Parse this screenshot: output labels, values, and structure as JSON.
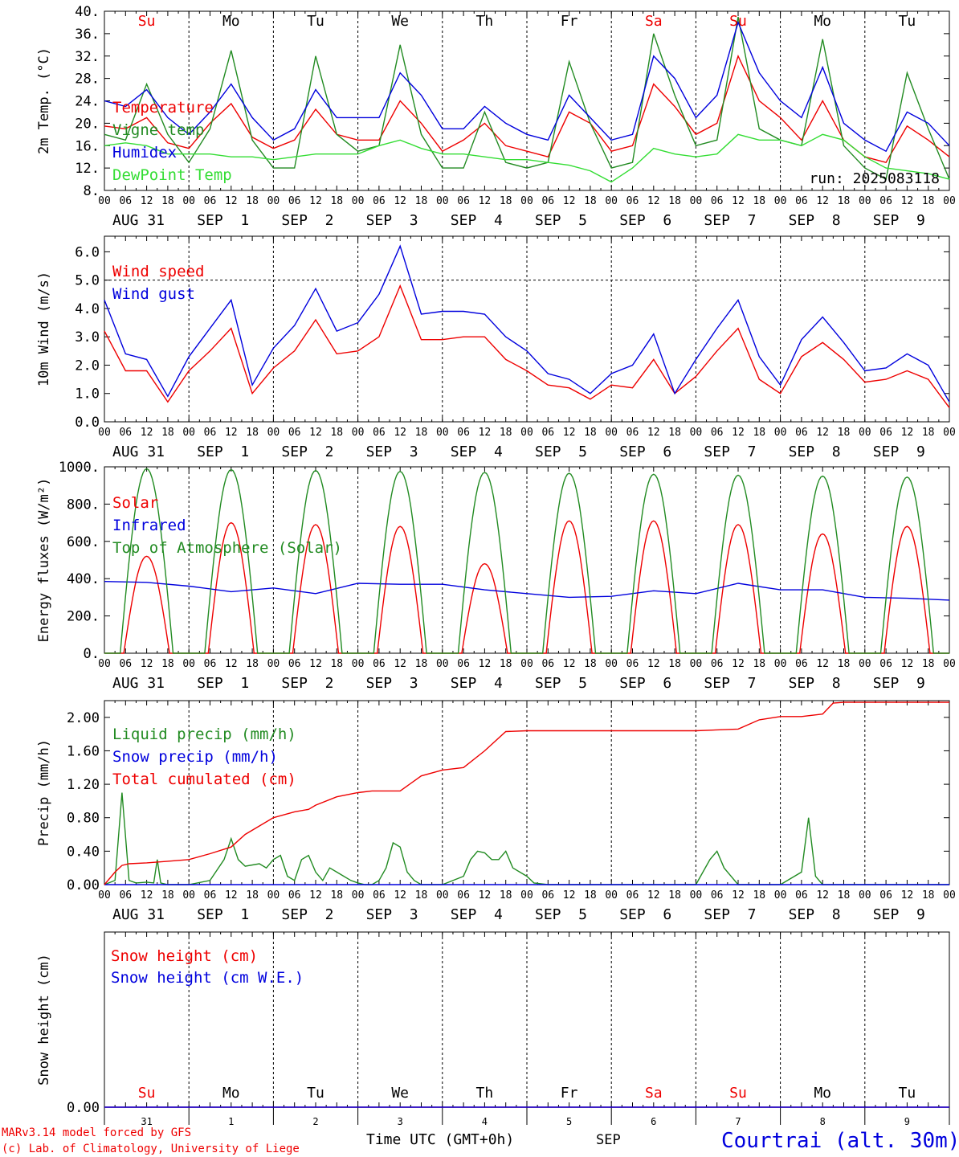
{
  "colors": {
    "red": "#ee0000",
    "blue": "#0000dd",
    "green": "#228b22",
    "lightgreen": "#33dd33",
    "black": "#000000"
  },
  "days": {
    "labels": [
      "AUG 31",
      "SEP  1",
      "SEP  2",
      "SEP  3",
      "SEP  4",
      "SEP  5",
      "SEP  6",
      "SEP  7",
      "SEP  8",
      "SEP  9"
    ],
    "weekdays": [
      "Su",
      "Mo",
      "Tu",
      "We",
      "Th",
      "Fr",
      "Sa",
      "Su",
      "Mo",
      "Tu"
    ],
    "weekday_colors": [
      "red",
      "black",
      "black",
      "black",
      "black",
      "black",
      "red",
      "red",
      "black",
      "black"
    ],
    "numbers": [
      "31",
      "1",
      "2",
      "3",
      "4",
      "5",
      "6",
      "7",
      "8",
      "9"
    ],
    "hour_ticks": [
      "00",
      "06",
      "12",
      "18"
    ],
    "final_tick": "00"
  },
  "footer": {
    "model": "MARv3.14 model forced by GFS",
    "lab": "(c) Lab. of Climatology, University of Liege",
    "time_label": "Time UTC (GMT+0h)",
    "month": "SEP",
    "station": "Courtrai (alt. 30m)"
  },
  "chart_data": [
    {
      "type": "line",
      "id": "temp",
      "ylabel": "2m Temp. (°C)",
      "ylim": [
        8,
        40
      ],
      "yticks": [
        "8.",
        "12.",
        "16.",
        "20.",
        "24.",
        "28.",
        "32.",
        "36.",
        "40."
      ],
      "run_label": "run: 2025083118",
      "series": [
        {
          "name": "Temperature",
          "color": "red",
          "x": [
            0,
            6,
            12,
            18,
            24,
            30,
            36,
            42,
            48,
            54,
            60,
            66,
            72,
            78,
            84,
            90,
            96,
            102,
            108,
            114,
            120,
            126,
            132,
            138,
            144,
            150,
            156,
            162,
            168,
            174,
            180,
            186,
            192,
            198,
            204,
            210,
            216,
            222,
            228,
            234,
            240
          ],
          "values": [
            19.5,
            19,
            21,
            16.5,
            15.5,
            20,
            23.5,
            17.5,
            15.5,
            17,
            22.5,
            18,
            17,
            17,
            24,
            20,
            15,
            17,
            20,
            16,
            15,
            14,
            22,
            20,
            15,
            16,
            27,
            23,
            18,
            20,
            32,
            24,
            21,
            17,
            24,
            17,
            14,
            13,
            19.5,
            17,
            14
          ]
        },
        {
          "name": "Vigne temp",
          "color": "green",
          "x": [
            0,
            6,
            12,
            18,
            24,
            30,
            36,
            42,
            48,
            54,
            60,
            66,
            72,
            78,
            84,
            90,
            96,
            102,
            108,
            114,
            120,
            126,
            132,
            138,
            144,
            150,
            156,
            162,
            168,
            174,
            180,
            186,
            192,
            198,
            204,
            210,
            216,
            222,
            228,
            234,
            240
          ],
          "values": [
            18,
            17,
            27,
            18,
            13,
            19,
            33,
            17,
            12,
            12,
            32,
            18,
            15,
            16,
            34,
            18,
            12,
            12,
            22,
            13,
            12,
            13,
            31,
            20,
            12,
            13,
            36,
            25,
            16,
            17,
            39,
            19,
            17,
            16,
            35,
            16,
            12,
            10,
            29,
            19,
            10
          ]
        },
        {
          "name": "Humidex",
          "color": "blue",
          "x": [
            0,
            6,
            12,
            18,
            24,
            30,
            36,
            42,
            48,
            54,
            60,
            66,
            72,
            78,
            84,
            90,
            96,
            102,
            108,
            114,
            120,
            126,
            132,
            138,
            144,
            150,
            156,
            162,
            168,
            174,
            180,
            186,
            192,
            198,
            204,
            210,
            216,
            222,
            228,
            234,
            240
          ],
          "values": [
            24,
            23,
            26,
            21,
            18,
            22,
            27,
            21,
            17,
            19,
            26,
            21,
            21,
            21,
            29,
            25,
            19,
            19,
            23,
            20,
            18,
            17,
            25,
            21,
            17,
            18,
            32,
            28,
            21,
            25,
            38,
            29,
            24,
            21,
            30,
            20,
            17,
            15,
            22,
            20,
            16
          ]
        },
        {
          "name": "DewPoint Temp",
          "color": "lightgreen",
          "x": [
            0,
            6,
            12,
            18,
            24,
            30,
            36,
            42,
            48,
            54,
            60,
            66,
            72,
            78,
            84,
            90,
            96,
            102,
            108,
            114,
            120,
            126,
            132,
            138,
            144,
            150,
            156,
            162,
            168,
            174,
            180,
            186,
            192,
            198,
            204,
            210,
            216,
            222,
            228,
            234,
            240
          ],
          "values": [
            16,
            16.5,
            16,
            14.5,
            14.5,
            14.5,
            14,
            14,
            13.5,
            14,
            14.5,
            14.5,
            14.5,
            16,
            17,
            15.5,
            14.5,
            14.5,
            14,
            13.5,
            13.5,
            13,
            12.5,
            11.5,
            9.5,
            12,
            15.5,
            14.5,
            14,
            14.5,
            18,
            17,
            17,
            16,
            18,
            17,
            14,
            12,
            11.5,
            11,
            10
          ]
        }
      ]
    },
    {
      "type": "line",
      "id": "wind",
      "ylabel": "10m Wind (m/s)",
      "ylim": [
        0,
        6.55
      ],
      "yticks": [
        "0.0",
        "1.0",
        "2.0",
        "3.0",
        "4.0",
        "5.0",
        "6.0"
      ],
      "ref_line": 5.0,
      "series": [
        {
          "name": "Wind speed",
          "color": "red",
          "x": [
            0,
            6,
            12,
            18,
            24,
            30,
            36,
            42,
            48,
            54,
            60,
            66,
            72,
            78,
            84,
            90,
            96,
            102,
            108,
            114,
            120,
            126,
            132,
            138,
            144,
            150,
            156,
            162,
            168,
            174,
            180,
            186,
            192,
            198,
            204,
            210,
            216,
            222,
            228,
            234,
            240
          ],
          "values": [
            3.2,
            1.8,
            1.8,
            0.7,
            1.8,
            2.5,
            3.3,
            1.0,
            1.9,
            2.5,
            3.6,
            2.4,
            2.5,
            3.0,
            4.8,
            2.9,
            2.9,
            3.0,
            3.0,
            2.2,
            1.8,
            1.3,
            1.2,
            0.8,
            1.3,
            1.2,
            2.2,
            1.0,
            1.6,
            2.5,
            3.3,
            1.5,
            1.0,
            2.3,
            2.8,
            2.2,
            1.4,
            1.5,
            1.8,
            1.5,
            0.5
          ]
        },
        {
          "name": "Wind gust",
          "color": "blue",
          "x": [
            0,
            6,
            12,
            18,
            24,
            30,
            36,
            42,
            48,
            54,
            60,
            66,
            72,
            78,
            84,
            90,
            96,
            102,
            108,
            114,
            120,
            126,
            132,
            138,
            144,
            150,
            156,
            162,
            168,
            174,
            180,
            186,
            192,
            198,
            204,
            210,
            216,
            222,
            228,
            234,
            240
          ],
          "values": [
            4.3,
            2.4,
            2.2,
            0.9,
            2.3,
            3.3,
            4.3,
            1.3,
            2.6,
            3.4,
            4.7,
            3.2,
            3.5,
            4.5,
            6.2,
            3.8,
            3.9,
            3.9,
            3.8,
            3.0,
            2.5,
            1.7,
            1.5,
            1.0,
            1.7,
            2.0,
            3.1,
            1.0,
            2.2,
            3.3,
            4.3,
            2.3,
            1.3,
            2.9,
            3.7,
            2.8,
            1.8,
            1.9,
            2.4,
            2.0,
            0.7
          ]
        }
      ]
    },
    {
      "type": "line",
      "id": "energy",
      "ylabel": "Energy fluxes (W/m²)",
      "ylim": [
        0,
        1000
      ],
      "yticks": [
        "0.",
        "200.",
        "400.",
        "600.",
        "800.",
        "1000."
      ],
      "series": [
        {
          "name": "Solar",
          "color": "red",
          "peaks": [
            520,
            700,
            690,
            680,
            480,
            710,
            710,
            690,
            640,
            680
          ]
        },
        {
          "name": "Infrared",
          "color": "blue",
          "x": [
            0,
            12,
            24,
            36,
            48,
            60,
            72,
            84,
            96,
            108,
            120,
            132,
            144,
            156,
            168,
            180,
            192,
            204,
            216,
            228,
            240
          ],
          "values": [
            385,
            380,
            360,
            330,
            350,
            320,
            375,
            370,
            370,
            340,
            320,
            300,
            305,
            335,
            320,
            375,
            340,
            340,
            300,
            295,
            285
          ]
        },
        {
          "name": "Top of Atmosphere (Solar)",
          "color": "green",
          "peaks": [
            990,
            985,
            980,
            975,
            970,
            965,
            960,
            955,
            950,
            945
          ]
        }
      ]
    },
    {
      "type": "line",
      "id": "precip",
      "ylabel": "Precip (mm/h)",
      "ylim": [
        0,
        2.2
      ],
      "yticks": [
        "0.00",
        "0.40",
        "0.80",
        "1.20",
        "1.60",
        "2.00"
      ],
      "series": [
        {
          "name": "Liquid precip (mm/h)",
          "color": "green",
          "x": [
            0,
            3,
            5,
            7,
            9,
            12,
            14,
            15,
            16,
            18,
            24,
            30,
            34,
            36,
            38,
            40,
            44,
            46,
            48,
            50,
            52,
            54,
            56,
            58,
            60,
            62,
            64,
            66,
            68,
            70,
            72,
            74,
            76,
            78,
            80,
            82,
            84,
            86,
            88,
            90,
            96,
            102,
            104,
            106,
            108,
            110,
            112,
            114,
            116,
            118,
            120,
            122,
            126,
            132,
            138,
            144,
            156,
            168,
            172,
            174,
            176,
            178,
            180,
            192,
            196,
            198,
            200,
            202,
            204,
            240
          ],
          "values": [
            0,
            0.05,
            1.1,
            0.05,
            0.02,
            0.03,
            0.02,
            0.3,
            0.02,
            0,
            0,
            0.05,
            0.3,
            0.55,
            0.3,
            0.22,
            0.25,
            0.2,
            0.3,
            0.35,
            0.1,
            0.05,
            0.3,
            0.35,
            0.15,
            0.05,
            0.2,
            0.15,
            0.1,
            0.05,
            0.02,
            0,
            0,
            0.05,
            0.2,
            0.5,
            0.45,
            0.15,
            0.05,
            0,
            0,
            0.1,
            0.3,
            0.4,
            0.38,
            0.3,
            0.3,
            0.4,
            0.2,
            0.15,
            0.1,
            0.02,
            0,
            0,
            0,
            0,
            0,
            0,
            0.3,
            0.4,
            0.2,
            0.1,
            0,
            0,
            0.1,
            0.15,
            0.8,
            0.1,
            0,
            0
          ]
        },
        {
          "name": "Snow precip (mm/h)",
          "color": "blue",
          "x": [
            0,
            240
          ],
          "values": [
            0,
            0
          ]
        },
        {
          "name": "Total cumulated (cm)",
          "color": "red",
          "x": [
            0,
            3,
            5,
            7,
            12,
            18,
            24,
            30,
            36,
            40,
            48,
            54,
            58,
            60,
            66,
            72,
            76,
            84,
            90,
            96,
            102,
            108,
            114,
            120,
            126,
            132,
            144,
            156,
            168,
            180,
            186,
            192,
            198,
            204,
            207,
            210,
            216,
            222,
            228,
            240
          ],
          "values": [
            0,
            0.15,
            0.23,
            0.25,
            0.26,
            0.28,
            0.3,
            0.37,
            0.45,
            0.6,
            0.8,
            0.87,
            0.9,
            0.95,
            1.05,
            1.1,
            1.12,
            1.12,
            1.3,
            1.37,
            1.4,
            1.6,
            1.83,
            1.84,
            1.84,
            1.84,
            1.84,
            1.84,
            1.84,
            1.86,
            1.97,
            2.01,
            2.01,
            2.04,
            2.17,
            2.18,
            2.18,
            2.18,
            2.18,
            2.18
          ]
        }
      ]
    },
    {
      "type": "line",
      "id": "snow",
      "ylabel": "Snow height (cm)",
      "ylim": [
        0,
        1
      ],
      "yticks": [
        "0.00"
      ],
      "series": [
        {
          "name": "Snow height (cm)",
          "color": "red",
          "x": [
            0,
            240
          ],
          "values": [
            0,
            0
          ]
        },
        {
          "name": "Snow height (cm W.E.)",
          "color": "blue",
          "x": [
            0,
            240
          ],
          "values": [
            0,
            0
          ]
        }
      ]
    }
  ]
}
